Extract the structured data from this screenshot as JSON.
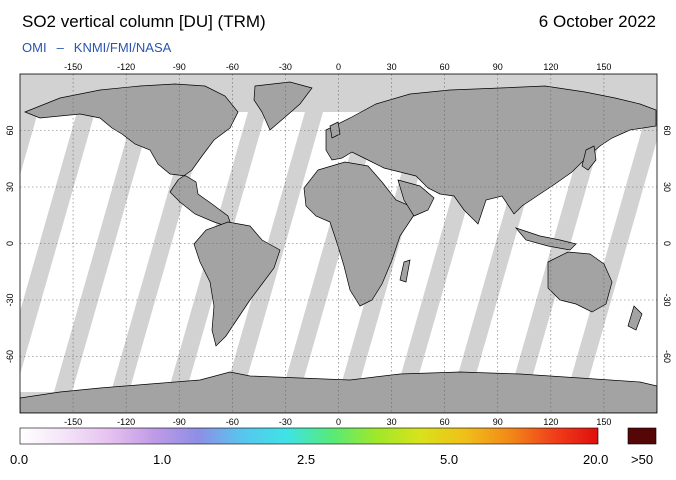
{
  "header": {
    "title": "SO2 vertical column [DU] (TRM)",
    "date": "6 October 2022",
    "credit_left": "OMI",
    "credit_dash": "–",
    "credit_right": "KNMI/FMI/NASA"
  },
  "map": {
    "projection": "equirectangular",
    "lon_range": [
      -180,
      180
    ],
    "lat_range": [
      -90,
      90
    ],
    "lon_ticks": [
      "-150",
      "-120",
      "-90",
      "-60",
      "-30",
      "0",
      "30",
      "60",
      "90",
      "120",
      "150"
    ],
    "lat_ticks": [
      "60",
      "30",
      "0",
      "-30",
      "-60"
    ],
    "grid": true,
    "colors": {
      "land": "#a3a3a3",
      "no_data": "#d2d2d2",
      "ocean_valid": "#ffffff"
    }
  },
  "colorbar": {
    "labels": [
      "0.0",
      "1.0",
      "2.5",
      "5.0",
      "20.0"
    ],
    "over_label": ">50",
    "colors": [
      "#ffffff",
      "#f4e4f8",
      "#e6c2f0",
      "#c09be6",
      "#8e8ee6",
      "#57c6ee",
      "#3fe3e6",
      "#55ea7a",
      "#9ee82b",
      "#d8e21b",
      "#f0c01a",
      "#f28a18",
      "#f0401a",
      "#e00e0e"
    ],
    "over_color": "#550606"
  }
}
